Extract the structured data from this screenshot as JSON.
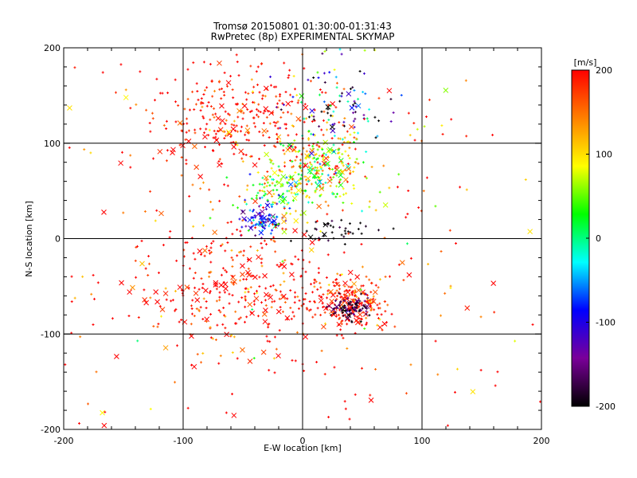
{
  "chart_data": {
    "type": "scatter",
    "title": "Tromsø 20150801 01:30:00-01:31:43",
    "subtitle": "RwPretec (8p) EXPERIMENTAL SKYMAP",
    "xlabel": "E-W location [km]",
    "ylabel": "N-S location [km]",
    "xlim": [
      -200,
      200
    ],
    "ylim": [
      -200,
      200
    ],
    "xticks": [
      "-200",
      "-100",
      "0",
      "100",
      "200"
    ],
    "yticks": [
      "-200",
      "-100",
      "0",
      "100",
      "200"
    ],
    "grid": true,
    "grid_lines": [
      -100,
      0,
      100
    ],
    "marker_types": [
      "+",
      "x"
    ],
    "colorbar": {
      "label": "[m/s]",
      "range": [
        -200,
        200
      ],
      "ticks": [
        "200",
        "100",
        "0",
        "-100",
        "-200"
      ],
      "colors": [
        "#000000",
        "#7a0099",
        "#0000ff",
        "#00ffff",
        "#00ff00",
        "#ffff00",
        "#ff8000",
        "#ff0000"
      ]
    },
    "clusters": [
      {
        "x": 15,
        "y": 75,
        "sx": 20,
        "sy": 20,
        "n": 260,
        "vmean": 80,
        "vspread": 60
      },
      {
        "x": -35,
        "y": 20,
        "sx": 10,
        "sy": 8,
        "n": 90,
        "vmean": -90,
        "vspread": 40
      },
      {
        "x": -20,
        "y": 50,
        "sx": 18,
        "sy": 12,
        "n": 90,
        "vmean": 40,
        "vspread": 50
      },
      {
        "x": 40,
        "y": -70,
        "sx": 18,
        "sy": 14,
        "n": 220,
        "vmean": 190,
        "vspread": 30
      },
      {
        "x": 40,
        "y": -72,
        "sx": 8,
        "sy": 6,
        "n": 90,
        "vmean": -180,
        "vspread": 25
      },
      {
        "x": 25,
        "y": 7,
        "sx": 15,
        "sy": 6,
        "n": 40,
        "vmean": -200,
        "vspread": 15
      },
      {
        "x": -60,
        "y": 130,
        "sx": 45,
        "sy": 30,
        "n": 300,
        "vmean": 200,
        "vspread": 40
      },
      {
        "x": -55,
        "y": -50,
        "sx": 45,
        "sy": 35,
        "n": 320,
        "vmean": 200,
        "vspread": 40
      },
      {
        "x": 30,
        "y": 140,
        "sx": 25,
        "sy": 25,
        "n": 90,
        "vmean": -120,
        "vspread": 80
      },
      {
        "x": 0,
        "y": 0,
        "sx": 130,
        "sy": 130,
        "n": 380,
        "vmean": 170,
        "vspread": 70
      }
    ]
  }
}
